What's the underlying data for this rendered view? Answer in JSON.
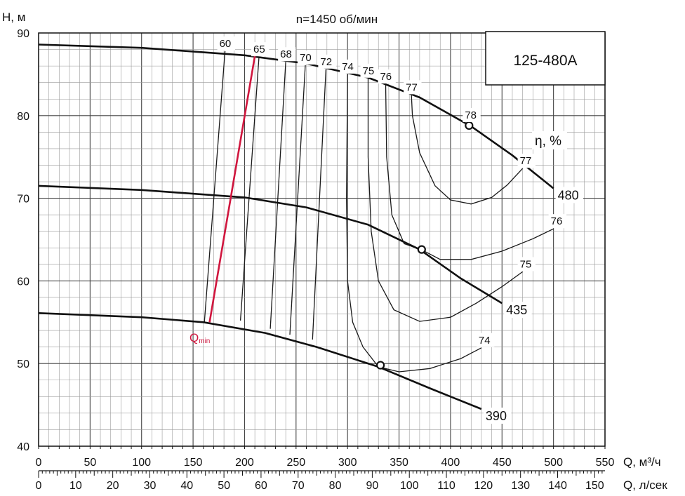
{
  "chart_data": {
    "type": "line",
    "title": "n=1450 об/мин",
    "model_label": "125-480A",
    "ylabel": "H, м",
    "xlabel": "Q, м³/ч",
    "xlabel2": "Q, л/сек",
    "eta_label": "η, %",
    "qmin_label_main": "Q",
    "qmin_label_sub": "min",
    "xlim": [
      0,
      550
    ],
    "ylim": [
      40,
      90
    ],
    "x_ticks": [
      "0",
      "50",
      "100",
      "150",
      "200",
      "250",
      "300",
      "350",
      "400",
      "450",
      "500",
      "550"
    ],
    "x2_ticks": [
      "0",
      "10",
      "20",
      "30",
      "40",
      "50",
      "60",
      "70",
      "80",
      "90",
      "100",
      "110",
      "120",
      "130",
      "140",
      "150"
    ],
    "y_ticks": [
      "40",
      "50",
      "60",
      "70",
      "80",
      "90"
    ],
    "grid": true,
    "head_curves": [
      {
        "name": "480",
        "points": [
          [
            0,
            88.6
          ],
          [
            100,
            88.2
          ],
          [
            200,
            87.3
          ],
          [
            260,
            86.3
          ],
          [
            320,
            84.6
          ],
          [
            370,
            82.2
          ],
          [
            420,
            78.7
          ],
          [
            460,
            75.2
          ],
          [
            500,
            71.2
          ]
        ]
      },
      {
        "name": "435",
        "points": [
          [
            0,
            71.5
          ],
          [
            100,
            71.0
          ],
          [
            200,
            70.1
          ],
          [
            260,
            68.9
          ],
          [
            320,
            66.8
          ],
          [
            370,
            63.8
          ],
          [
            410,
            60.3
          ],
          [
            450,
            57.3
          ]
        ]
      },
      {
        "name": "390",
        "points": [
          [
            0,
            56.1
          ],
          [
            100,
            55.6
          ],
          [
            160,
            55.0
          ],
          [
            220,
            53.7
          ],
          [
            270,
            52.0
          ],
          [
            330,
            49.6
          ],
          [
            380,
            47.0
          ],
          [
            400,
            46.0
          ],
          [
            430,
            44.5
          ]
        ]
      }
    ],
    "efficiency_lines": [
      {
        "name": "60",
        "points": [
          [
            181,
            87.8
          ],
          [
            161,
            55.0
          ]
        ]
      },
      {
        "name": "65",
        "points": [
          [
            214,
            87.1
          ],
          [
            196,
            55.2
          ]
        ]
      },
      {
        "name": "68",
        "points": [
          [
            240,
            86.5
          ],
          [
            225,
            54.2
          ]
        ]
      },
      {
        "name": "70",
        "points": [
          [
            259,
            86.1
          ],
          [
            244,
            53.5
          ]
        ]
      },
      {
        "name": "72",
        "points": [
          [
            279,
            85.6
          ],
          [
            266,
            52.9
          ]
        ]
      }
    ],
    "efficiency_contours": [
      {
        "name": "74",
        "points": [
          [
            300,
            85.0
          ],
          [
            299,
            70
          ],
          [
            300,
            60
          ],
          [
            305,
            55
          ],
          [
            315,
            52
          ],
          [
            330,
            49.6
          ],
          [
            350,
            49.0
          ],
          [
            380,
            49.4
          ],
          [
            410,
            50.6
          ],
          [
            430,
            51.9
          ]
        ]
      },
      {
        "name": "75",
        "points": [
          [
            320,
            84.5
          ],
          [
            320,
            75
          ],
          [
            323,
            66
          ],
          [
            330,
            60
          ],
          [
            345,
            56.5
          ],
          [
            370,
            55.1
          ],
          [
            400,
            55.6
          ],
          [
            425,
            57.3
          ],
          [
            450,
            59.3
          ],
          [
            470,
            61.1
          ]
        ]
      },
      {
        "name": "76",
        "points": [
          [
            337,
            83.8
          ],
          [
            338,
            75
          ],
          [
            343,
            68
          ],
          [
            355,
            64.5
          ],
          [
            373,
            63.7
          ],
          [
            390,
            62.6
          ],
          [
            420,
            62.6
          ],
          [
            450,
            63.6
          ],
          [
            480,
            65.1
          ],
          [
            500,
            66.3
          ]
        ]
      },
      {
        "name": "77",
        "points": [
          [
            362,
            82.5
          ],
          [
            363,
            80
          ],
          [
            370,
            75.5
          ],
          [
            385,
            71.5
          ],
          [
            400,
            69.8
          ],
          [
            420,
            69.3
          ],
          [
            440,
            70.1
          ],
          [
            455,
            71.6
          ],
          [
            470,
            73.6
          ]
        ]
      }
    ],
    "qmin_line": {
      "points": [
        [
          166,
          55.0
        ],
        [
          210,
          87.2
        ]
      ]
    },
    "markers": [
      {
        "name": "78",
        "point": [
          418,
          78.8
        ]
      },
      {
        "name": "",
        "point": [
          372,
          63.8
        ]
      },
      {
        "name": "",
        "point": [
          332,
          49.8
        ]
      }
    ],
    "legend_boxes": [
      {
        "name": "480"
      },
      {
        "name": "435"
      },
      {
        "name": "390"
      }
    ]
  }
}
